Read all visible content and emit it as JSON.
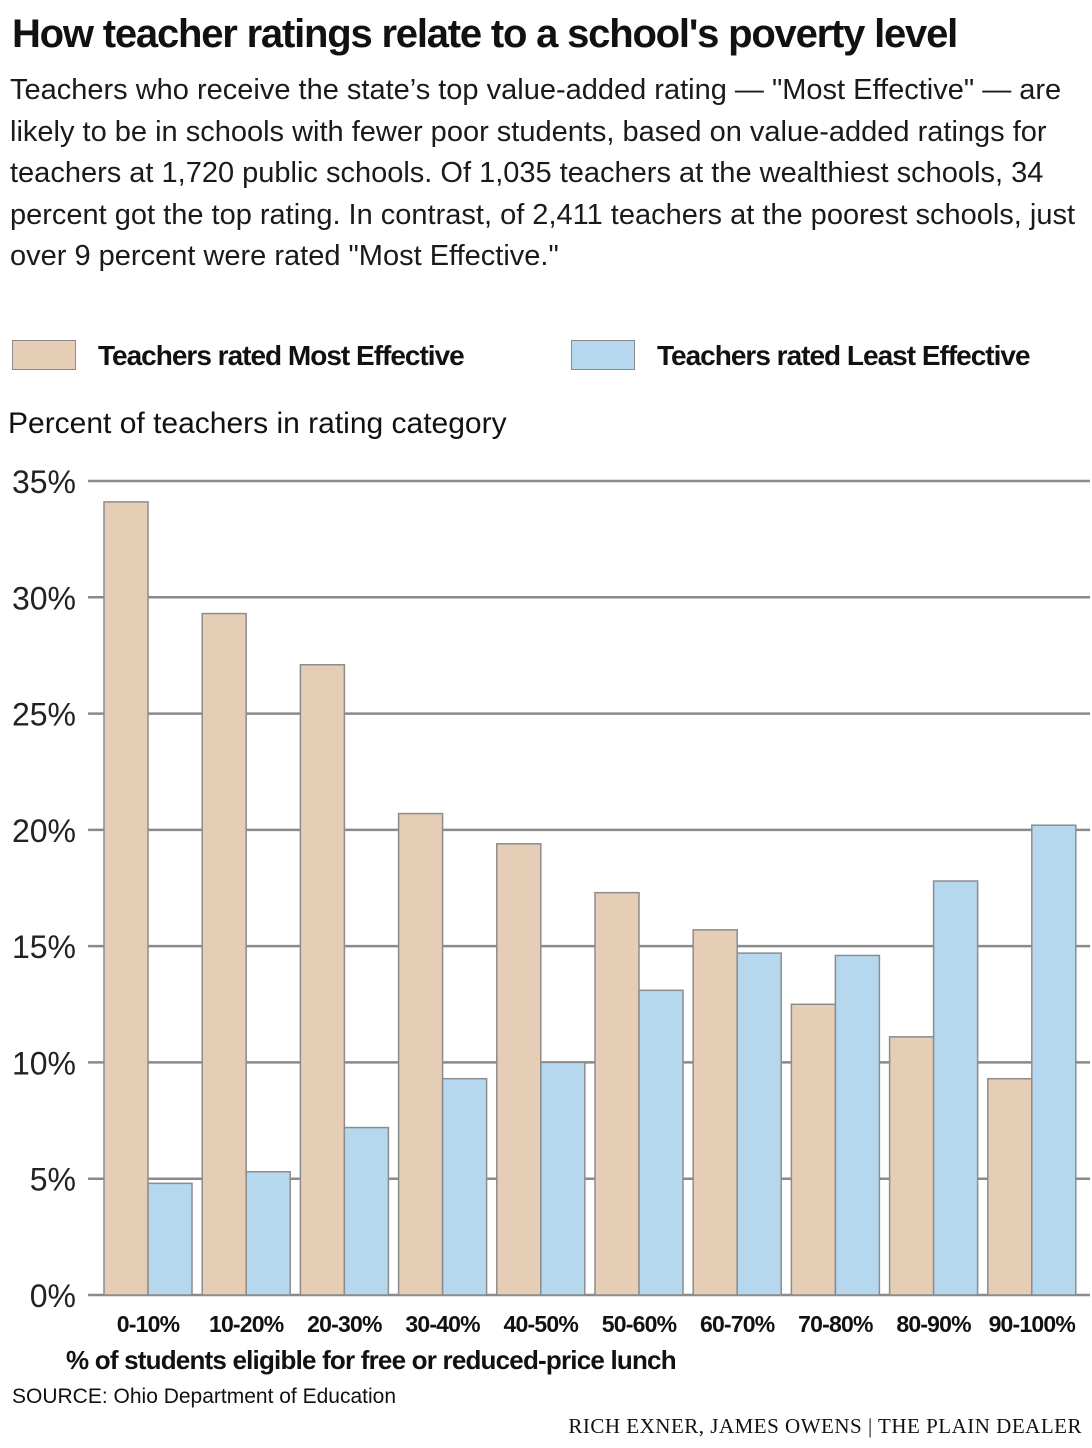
{
  "header": {
    "title": "How teacher ratings relate to a school's poverty level",
    "intro": "Teachers who receive the state’s top value-added rating — \"Most Effective\" — are likely to be in schools with fewer poor students, based on value-added ratings for teachers at 1,720 public schools. Of 1,035 teachers at the wealthiest schools, 34 percent got the top rating. In contrast, of 2,411 teachers at the poorest schools, just over 9 percent were rated \"Most Effective.\""
  },
  "legend": {
    "most": "Teachers rated Most Effective",
    "least": "Teachers rated Least Effective"
  },
  "colors": {
    "most": "#e6ceb6",
    "least": "#b6d8ee",
    "gridline": "#8a8a8a",
    "bar_border": "#8c8c8c"
  },
  "chart_data": {
    "type": "bar",
    "title": "How teacher ratings relate to a school's poverty level",
    "ylabel": "Percent of teachers in rating category",
    "xlabel": "% of students eligible for free or reduced-price lunch",
    "ylim": [
      0,
      35
    ],
    "yticks": [
      0,
      5,
      10,
      15,
      20,
      25,
      30,
      35
    ],
    "ytick_labels": [
      "0%",
      "5%",
      "10%",
      "15%",
      "20%",
      "25%",
      "30%",
      "35%"
    ],
    "grid": true,
    "legend_position": "top",
    "categories": [
      "0-10%",
      "10-20%",
      "20-30%",
      "30-40%",
      "40-50%",
      "50-60%",
      "60-70%",
      "70-80%",
      "80-90%",
      "90-100%"
    ],
    "series": [
      {
        "name": "Teachers rated Most Effective",
        "values": [
          34.1,
          29.3,
          27.1,
          20.7,
          19.4,
          17.3,
          15.7,
          12.5,
          11.1,
          9.3
        ]
      },
      {
        "name": "Teachers rated Least Effective",
        "values": [
          4.8,
          5.3,
          7.2,
          9.3,
          10.0,
          13.1,
          14.7,
          14.6,
          17.8,
          20.2
        ]
      }
    ]
  },
  "footer": {
    "source": "SOURCE: Ohio Department of Education",
    "credit": "RICH EXNER, JAMES OWENS | THE PLAIN DEALER"
  }
}
